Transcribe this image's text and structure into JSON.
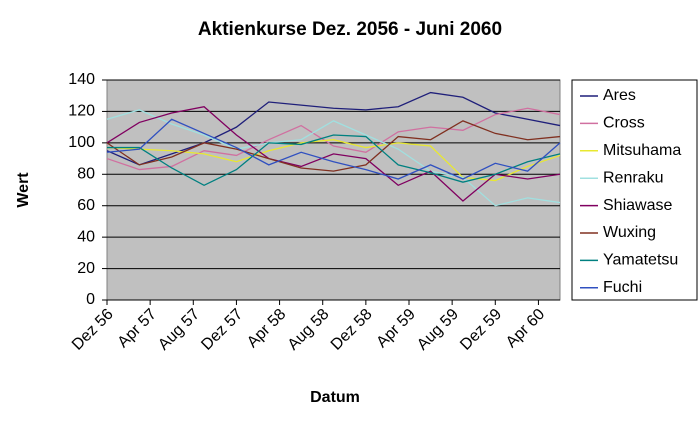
{
  "chart_data": {
    "type": "line",
    "title": "Aktienkurse Dez. 2056 - Juni 2060",
    "x_label": "Datum",
    "y_label": "Wert",
    "x": [
      0,
      3,
      6,
      9,
      12,
      15,
      18,
      21,
      24,
      27,
      30,
      33,
      36,
      39,
      42
    ],
    "xlim": [
      0,
      42
    ],
    "xticks": [
      {
        "value": 0,
        "label": "Dez 56"
      },
      {
        "value": 4,
        "label": "Apr 57"
      },
      {
        "value": 8,
        "label": "Aug 57"
      },
      {
        "value": 12,
        "label": "Dez 57"
      },
      {
        "value": 16,
        "label": "Apr 58"
      },
      {
        "value": 20,
        "label": "Aug 58"
      },
      {
        "value": 24,
        "label": "Dez 58"
      },
      {
        "value": 28,
        "label": "Apr 59"
      },
      {
        "value": 32,
        "label": "Aug 59"
      },
      {
        "value": 36,
        "label": "Dez 59"
      },
      {
        "value": 40,
        "label": "Apr 60"
      }
    ],
    "ylim": [
      0,
      140
    ],
    "yticks": [
      0,
      20,
      40,
      60,
      80,
      100,
      120,
      140
    ],
    "grid": true,
    "legend": "right",
    "series": [
      {
        "name": "Ares",
        "color": "#1f1f7a",
        "values": [
          95,
          86,
          93,
          100,
          110,
          126,
          124,
          122,
          121,
          123,
          132,
          129,
          119,
          115,
          111
        ]
      },
      {
        "name": "Cross",
        "color": "#d070a0",
        "values": [
          90,
          83,
          85,
          95,
          92,
          102,
          111,
          98,
          94,
          107,
          110,
          108,
          118,
          122,
          118
        ]
      },
      {
        "name": "Mitsuhama",
        "color": "#e8e830",
        "values": [
          97,
          96,
          95,
          93,
          88,
          95,
          100,
          102,
          97,
          100,
          98,
          78,
          76,
          85,
          92
        ]
      },
      {
        "name": "Renraku",
        "color": "#a0e0e0",
        "values": [
          115,
          121,
          112,
          105,
          96,
          100,
          102,
          114,
          105,
          96,
          82,
          78,
          60,
          65,
          62
        ]
      },
      {
        "name": "Shiawase",
        "color": "#800060",
        "values": [
          100,
          113,
          119,
          123,
          105,
          90,
          85,
          93,
          90,
          73,
          82,
          63,
          80,
          77,
          80
        ]
      },
      {
        "name": "Wuxing",
        "color": "#803020",
        "values": [
          100,
          86,
          91,
          100,
          96,
          90,
          84,
          82,
          86,
          104,
          102,
          114,
          106,
          102,
          104
        ]
      },
      {
        "name": "Yamatetsu",
        "color": "#008080",
        "values": [
          97,
          97,
          84,
          73,
          83,
          100,
          99,
          105,
          104,
          86,
          81,
          75,
          80,
          88,
          93
        ]
      },
      {
        "name": "Fuchi",
        "color": "#3050c0",
        "values": [
          94,
          96,
          115,
          106,
          97,
          86,
          94,
          88,
          83,
          77,
          86,
          77,
          87,
          82,
          100
        ]
      }
    ]
  }
}
